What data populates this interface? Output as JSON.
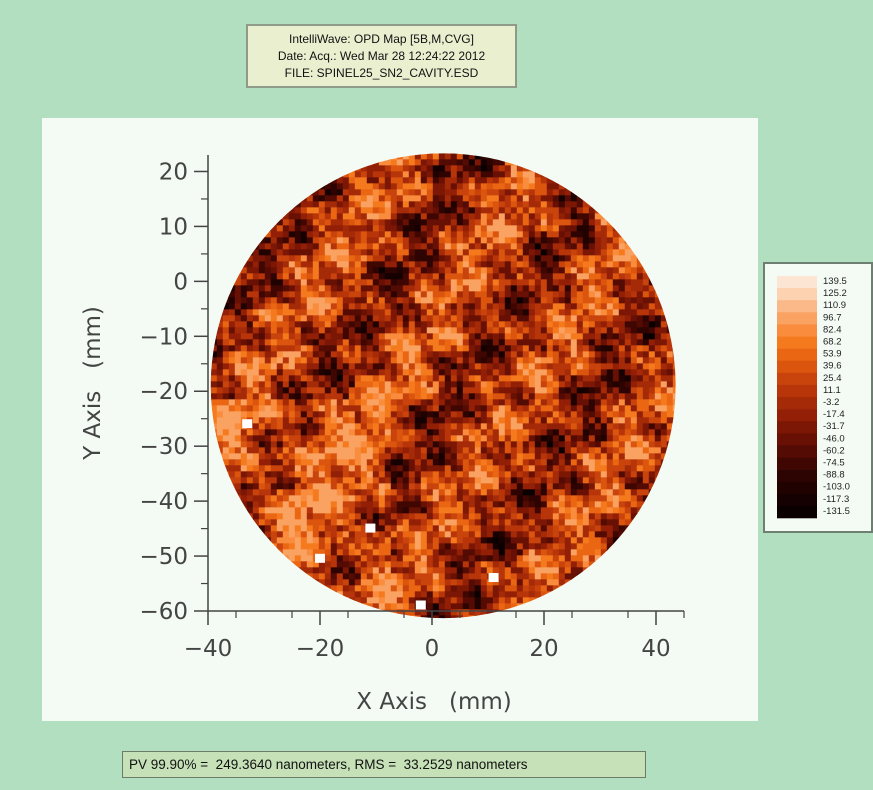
{
  "title": {
    "line1": "IntelliWave: OPD Map [5B,M,CVG]",
    "line2": "Date: Acq.: Wed Mar 28 12:24:22 2012",
    "line3": "FILE: SPINEL25_SN2_CAVITY.ESD"
  },
  "status": {
    "text": "PV 99.90% =  249.3640 nanometers, RMS =  33.2529 nanometers"
  },
  "colors": {
    "page_background": "#b2dfbf",
    "panel_background": "#f3fbf4",
    "axis": "#444444"
  },
  "chart_data": {
    "type": "heatmap",
    "xlabel": "X Axis   (mm)",
    "ylabel": "Y Axis   (mm)",
    "xlim": [
      -40,
      45
    ],
    "ylim": [
      -60,
      23
    ],
    "x_ticks": [
      {
        "value": -40,
        "label": "−40"
      },
      {
        "value": -20,
        "label": "−20"
      },
      {
        "value": 0,
        "label": "0"
      },
      {
        "value": 20,
        "label": "20"
      },
      {
        "value": 40,
        "label": "40"
      }
    ],
    "y_ticks": [
      {
        "value": 20,
        "label": "20"
      },
      {
        "value": 10,
        "label": "10"
      },
      {
        "value": 0,
        "label": "0"
      },
      {
        "value": -10,
        "label": "−10"
      },
      {
        "value": -20,
        "label": "−20"
      },
      {
        "value": -30,
        "label": "−30"
      },
      {
        "value": -40,
        "label": "−40"
      },
      {
        "value": -50,
        "label": "−50"
      },
      {
        "value": -60,
        "label": "−60"
      }
    ],
    "aperture": {
      "center_x": 2,
      "center_y": -19,
      "radius": 41.5
    },
    "colorbar": {
      "levels": [
        "139.5",
        "125.2",
        "110.9",
        "96.7",
        "82.4",
        "68.2",
        "53.9",
        "39.6",
        "25.4",
        "11.1",
        "-3.2",
        "-17.4",
        "-31.7",
        "-46.0",
        "-60.2",
        "-74.5",
        "-88.8",
        "-103.0",
        "-117.3",
        "-131.5"
      ],
      "colors": [
        "#fde5d3",
        "#fcd2b1",
        "#fbb98a",
        "#f9a262",
        "#f98d3d",
        "#f57a1e",
        "#ea6612",
        "#db550e",
        "#c9430c",
        "#b8350a",
        "#a52a08",
        "#921f06",
        "#7c1705",
        "#681004",
        "#530b03",
        "#400702",
        "#2e0402",
        "#200201",
        "#150101",
        "#0a0000"
      ]
    }
  }
}
